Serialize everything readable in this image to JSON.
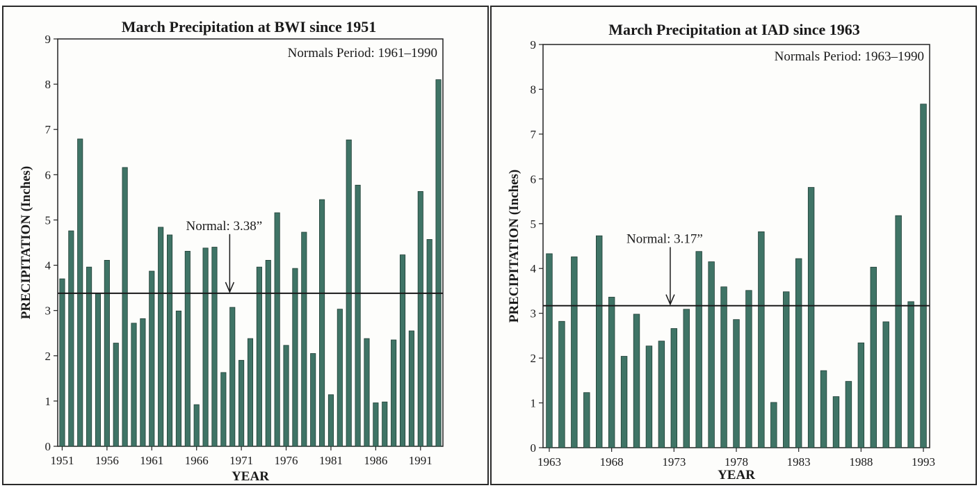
{
  "colors": {
    "bar": "#3f7466",
    "text": "#1a1a1a",
    "frame": "#2a2a2a"
  },
  "chart_data": [
    {
      "type": "bar",
      "title": "March Precipitation at BWI since 1951",
      "subtitle": "Normals Period: 1961–1990",
      "xlabel": "YEAR",
      "ylabel": "PRECIPITATION (Inches)",
      "ylim": [
        0,
        9
      ],
      "yticks": [
        0,
        1,
        2,
        3,
        4,
        5,
        6,
        7,
        8,
        9
      ],
      "xticks": [
        "1951",
        "1956",
        "1961",
        "1966",
        "1971",
        "1976",
        "1981",
        "1986",
        "1991"
      ],
      "categories": [
        1951,
        1952,
        1953,
        1954,
        1955,
        1956,
        1957,
        1958,
        1959,
        1960,
        1961,
        1962,
        1963,
        1964,
        1965,
        1966,
        1967,
        1968,
        1969,
        1970,
        1971,
        1972,
        1973,
        1974,
        1975,
        1976,
        1977,
        1978,
        1979,
        1980,
        1981,
        1982,
        1983,
        1984,
        1985,
        1986,
        1987,
        1988,
        1989,
        1990,
        1991,
        1992,
        1993
      ],
      "values": [
        3.7,
        4.76,
        6.79,
        3.96,
        3.37,
        4.11,
        2.28,
        6.16,
        2.72,
        2.82,
        3.87,
        4.84,
        4.67,
        2.99,
        4.31,
        0.92,
        4.38,
        4.4,
        1.63,
        3.07,
        1.9,
        2.38,
        3.96,
        4.11,
        5.16,
        2.23,
        3.93,
        4.73,
        2.05,
        5.45,
        1.14,
        3.03,
        6.77,
        5.77,
        2.38,
        0.96,
        0.98,
        2.35,
        4.23,
        2.55,
        5.63,
        4.57,
        8.1
      ],
      "normal": {
        "value": 3.38,
        "label": "Normal: 3.38”",
        "arrow_year": 1970
      },
      "grid": false
    },
    {
      "type": "bar",
      "title": "March Precipitation at IAD since 1963",
      "subtitle": "Normals Period: 1963–1990",
      "xlabel": "YEAR",
      "ylabel": "PRECIPITATION (Inches)",
      "ylim": [
        0,
        9
      ],
      "yticks": [
        0,
        1,
        2,
        3,
        4,
        5,
        6,
        7,
        8,
        9
      ],
      "xticks": [
        "1963",
        "1968",
        "1973",
        "1978",
        "1983",
        "1988",
        "1993"
      ],
      "categories": [
        1963,
        1964,
        1965,
        1966,
        1967,
        1968,
        1969,
        1970,
        1971,
        1972,
        1973,
        1974,
        1975,
        1976,
        1977,
        1978,
        1979,
        1980,
        1981,
        1982,
        1983,
        1984,
        1985,
        1986,
        1987,
        1988,
        1989,
        1990,
        1991,
        1992,
        1993
      ],
      "values": [
        4.33,
        2.82,
        4.26,
        1.23,
        4.73,
        3.36,
        2.04,
        2.98,
        2.27,
        2.38,
        2.66,
        3.09,
        4.38,
        4.15,
        3.59,
        2.86,
        3.51,
        4.82,
        1.01,
        3.48,
        4.22,
        5.81,
        1.72,
        1.14,
        1.48,
        2.34,
        4.03,
        2.81,
        5.18,
        3.26,
        7.67
      ],
      "normal": {
        "value": 3.17,
        "label": "Normal: 3.17”",
        "arrow_year": 1973
      },
      "grid": false
    }
  ]
}
